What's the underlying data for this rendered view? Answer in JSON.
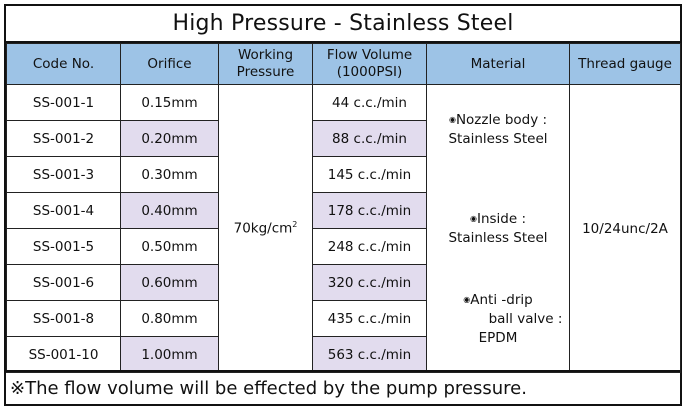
{
  "title": "High Pressure - Stainless Steel",
  "headers": {
    "code": "Code No.",
    "orifice": "Orifice",
    "pressure_line1": "Working",
    "pressure_line2": "Pressure",
    "flow_line1": "Flow Volume",
    "flow_line2": "(1000PSI)",
    "material": "Material",
    "thread": "Thread gauge"
  },
  "rows": [
    {
      "code": "SS-001-1",
      "orifice": "0.15mm",
      "flow": "44 c.c./min"
    },
    {
      "code": "SS-001-2",
      "orifice": "0.20mm",
      "flow": "88 c.c./min"
    },
    {
      "code": "SS-001-3",
      "orifice": "0.30mm",
      "flow": "145 c.c./min"
    },
    {
      "code": "SS-001-4",
      "orifice": "0.40mm",
      "flow": "178 c.c./min"
    },
    {
      "code": "SS-001-5",
      "orifice": "0.50mm",
      "flow": "248 c.c./min"
    },
    {
      "code": "SS-001-6",
      "orifice": "0.60mm",
      "flow": "320 c.c./min"
    },
    {
      "code": "SS-001-8",
      "orifice": "0.80mm",
      "flow": "435 c.c./min"
    },
    {
      "code": "SS-001-10",
      "orifice": "1.00mm",
      "flow": "563 c.c./min"
    }
  ],
  "working_pressure": {
    "value": "70kg/cm",
    "superscript": "2"
  },
  "material": {
    "bullet": "◉",
    "item1_label": "Nozzle body :",
    "item1_value": "Stainless Steel",
    "item2_label": "Inside :",
    "item2_value": "Stainless Steel",
    "item3_label": "Anti -drip",
    "item3_label2": "ball valve :",
    "item3_value": "EPDM"
  },
  "thread_gauge": "10/24unc/2A",
  "note": "※The flow volume will be effected by the pump pressure.",
  "colors": {
    "header_bg": "#9dc3e6",
    "shade_bg": "#e2dcee"
  }
}
